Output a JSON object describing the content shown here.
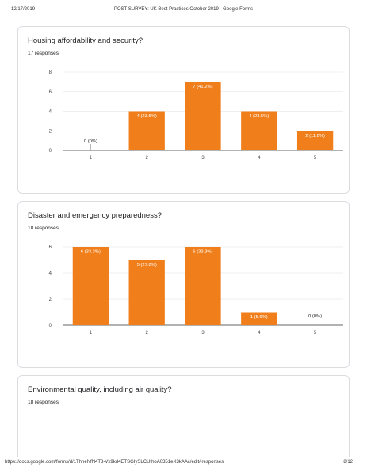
{
  "print_header": {
    "date": "12/17/2019",
    "title": "POST-SURVEY: UK Best Practices October 2019 - Google Forms"
  },
  "print_footer": {
    "url": "https://docs.google.com/forms/d/1ThneNfN4T8-Vx9kd4ETSGIySLCUthoA0351eX3kAAc/edit#responses",
    "page": "8/12"
  },
  "questions": [
    {
      "title": "Housing affordability and security?",
      "responses": "17 responses"
    },
    {
      "title": "Disaster and emergency preparedness?",
      "responses": "18 responses"
    },
    {
      "title": "Environmental quality, including air quality?",
      "responses": "18 responses"
    }
  ],
  "colors": {
    "bar": "#f07f1b",
    "bar_label_light": "#ffffff",
    "bar_label_dark": "#222222",
    "grid": "#e0e0e0",
    "axis": "#333333"
  },
  "chart_data": [
    {
      "type": "bar",
      "title": "Housing affordability and security?",
      "categories": [
        "1",
        "2",
        "3",
        "4",
        "5"
      ],
      "values": [
        0,
        4,
        7,
        4,
        2
      ],
      "data_labels": [
        "0 (0%)",
        "4 (23.5%)",
        "7 (41.2%)",
        "4 (23.5%)",
        "2 (11.8%)"
      ],
      "ylim": [
        0,
        8
      ],
      "yticks": [
        "0",
        "2",
        "4",
        "6",
        "8"
      ],
      "grid": true
    },
    {
      "type": "bar",
      "title": "Disaster and emergency preparedness?",
      "categories": [
        "1",
        "2",
        "3",
        "4",
        "5"
      ],
      "values": [
        6,
        5,
        6,
        1,
        0
      ],
      "data_labels": [
        "6 (33.3%)",
        "5 (27.8%)",
        "6 (33.3%)",
        "1 (5.6%)",
        "0 (0%)"
      ],
      "ylim": [
        0,
        6
      ],
      "yticks": [
        "0",
        "2",
        "4",
        "6"
      ],
      "grid": true
    }
  ]
}
